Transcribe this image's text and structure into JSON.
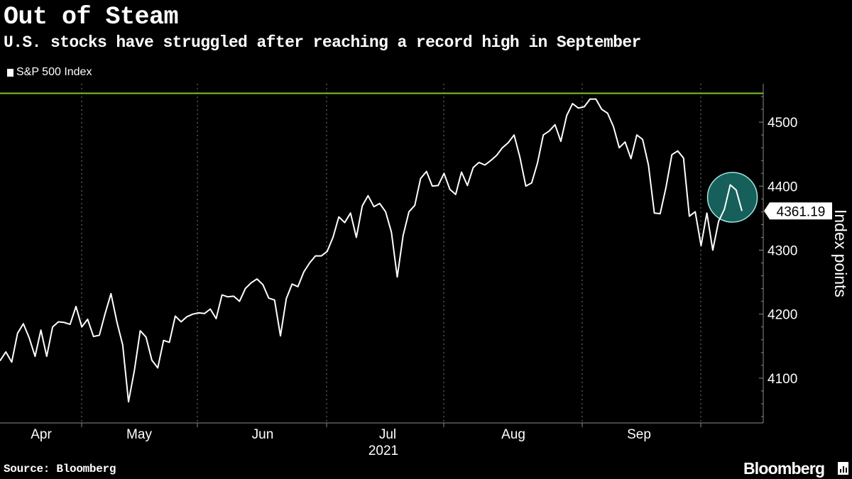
{
  "header": {
    "title": "Out of Steam",
    "subtitle": "U.S. stocks have struggled after reaching a record high in September",
    "legend_label": "S&P 500 Index"
  },
  "footer": {
    "source": "Source: Bloomberg",
    "brand": "Bloomberg"
  },
  "chart_data": {
    "type": "line",
    "title": "Out of Steam",
    "subtitle": "U.S. stocks have struggled after reaching a record high in September",
    "xlabel": "",
    "ylabel": "Index points",
    "ylim": [
      4030,
      4560
    ],
    "yticks": [
      4100,
      4200,
      4300,
      4400,
      4500
    ],
    "xticks": [
      "Apr",
      "May",
      "Jun",
      "Jul",
      "Aug",
      "Sep"
    ],
    "year_label": "2021",
    "grid": "vertical dashed at month boundaries",
    "legend": "top-left",
    "reference_line": {
      "value": 4545,
      "color": "#7dc42a"
    },
    "last_value_label": "4361.19",
    "highlight": "circle around final points",
    "series": [
      {
        "name": "S&P 500 Index",
        "color": "#ffffff",
        "values": [
          4127,
          4141,
          4125,
          4170,
          4185,
          4163,
          4134,
          4175,
          4134,
          4180,
          4188,
          4187,
          4184,
          4212,
          4180,
          4192,
          4165,
          4167,
          4201,
          4232,
          4188,
          4152,
          4063,
          4112,
          4174,
          4164,
          4128,
          4116,
          4159,
          4156,
          4197,
          4188,
          4196,
          4200,
          4202,
          4201,
          4208,
          4193,
          4230,
          4227,
          4228,
          4220,
          4240,
          4249,
          4255,
          4246,
          4225,
          4222,
          4166,
          4224,
          4247,
          4243,
          4266,
          4280,
          4291,
          4291,
          4298,
          4320,
          4352,
          4343,
          4358,
          4320,
          4369,
          4385,
          4368,
          4373,
          4360,
          4328,
          4258,
          4323,
          4360,
          4370,
          4412,
          4423,
          4400,
          4401,
          4420,
          4395,
          4387,
          4422,
          4401,
          4429,
          4437,
          4433,
          4440,
          4448,
          4460,
          4468,
          4480,
          4445,
          4400,
          4405,
          4436,
          4480,
          4486,
          4496,
          4470,
          4510,
          4529,
          4522,
          4524,
          4536,
          4536,
          4520,
          4514,
          4493,
          4460,
          4469,
          4443,
          4480,
          4473,
          4433,
          4358,
          4357,
          4398,
          4449,
          4455,
          4444,
          4353,
          4360,
          4307,
          4358,
          4300,
          4345,
          4364,
          4402,
          4394,
          4361.19
        ]
      }
    ]
  }
}
